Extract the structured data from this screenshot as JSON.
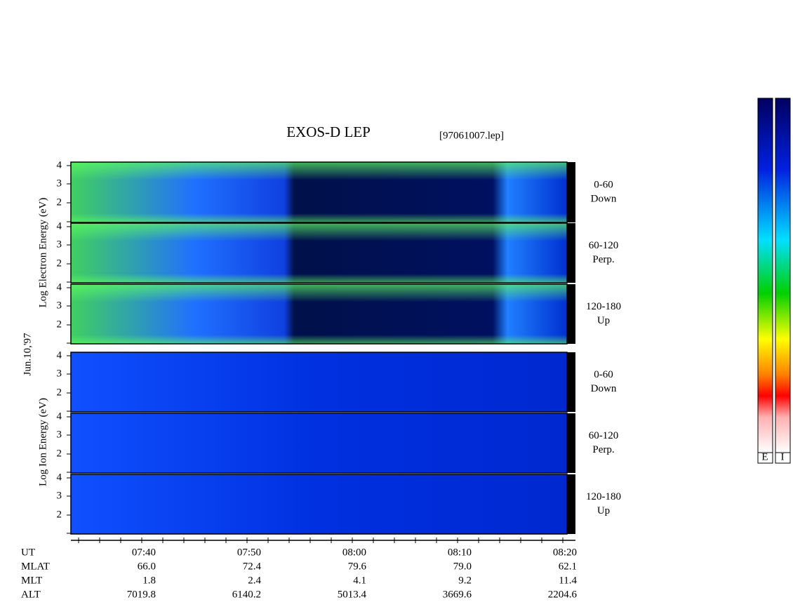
{
  "title": "EXOS-D LEP",
  "file": "[97061007.lep]",
  "date": "Jun.10,'97",
  "electron_axis": "Log Electron Energy (eV)",
  "ion_axis": "Log Ion Energy (eV)",
  "panel_ticks": [
    "4",
    "3",
    "2"
  ],
  "pitch_labels": [
    {
      "range": "0-60",
      "direction": "Down"
    },
    {
      "range": "60-120",
      "direction": "Perp."
    },
    {
      "range": "120-180",
      "direction": "Up"
    }
  ],
  "rows": [
    {
      "label": "UT",
      "values": [
        "07:40",
        "07:50",
        "08:00",
        "08:10",
        "08:20"
      ]
    },
    {
      "label": "MLAT",
      "values": [
        "66.0",
        "72.4",
        "79.6",
        "79.0",
        "62.1"
      ]
    },
    {
      "label": "MLT",
      "values": [
        "1.8",
        "2.4",
        "4.1",
        "9.2",
        "11.4"
      ]
    },
    {
      "label": "ALT",
      "values": [
        "7019.8",
        "6140.2",
        "5013.4",
        "3669.6",
        "2204.6"
      ]
    }
  ],
  "colorbar_labels": [
    "E",
    "I"
  ]
}
